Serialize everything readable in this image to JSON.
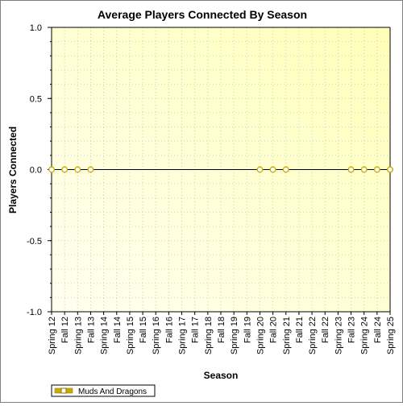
{
  "chart_data": {
    "type": "line",
    "title": "Average Players Connected By Season",
    "xlabel": "Season",
    "ylabel": "Players Connected",
    "categories": [
      "Spring 12",
      "Fall 12",
      "Spring 13",
      "Fall 13",
      "Spring 14",
      "Fall 14",
      "Spring 15",
      "Fall 15",
      "Spring 16",
      "Fall 16",
      "Spring 17",
      "Fall 17",
      "Spring 18",
      "Fall 18",
      "Spring 19",
      "Fall 19",
      "Spring 20",
      "Fall 20",
      "Spring 21",
      "Fall 21",
      "Spring 22",
      "Fall 22",
      "Spring 23",
      "Fall 23",
      "Spring 24",
      "Fall 24",
      "Spring 25"
    ],
    "y_ticks": [
      "1.0",
      "0.5",
      "0.0",
      "-0.5",
      "-1.0"
    ],
    "ylim": [
      -1.0,
      1.0
    ],
    "grid": true,
    "legend_position": "bottom-left",
    "series": [
      {
        "name": "Muds And Dragons",
        "color": "#ccaa00",
        "line_color": "#000000",
        "points": [
          {
            "x": "Spring 12",
            "y": 0
          },
          {
            "x": "Fall 12",
            "y": 0
          },
          {
            "x": "Spring 13",
            "y": 0
          },
          {
            "x": "Fall 13",
            "y": 0
          },
          {
            "x": "Spring 20",
            "y": 0
          },
          {
            "x": "Fall 20",
            "y": 0
          },
          {
            "x": "Spring 21",
            "y": 0
          },
          {
            "x": "Fall 23",
            "y": 0
          },
          {
            "x": "Spring 24",
            "y": 0
          },
          {
            "x": "Fall 24",
            "y": 0
          },
          {
            "x": "Spring 25",
            "y": 0
          },
          {
            "x": "Spring 25",
            "y": 0
          }
        ]
      }
    ],
    "plot_background": {
      "from": "#fffff0",
      "to": "#ffffb8"
    }
  }
}
